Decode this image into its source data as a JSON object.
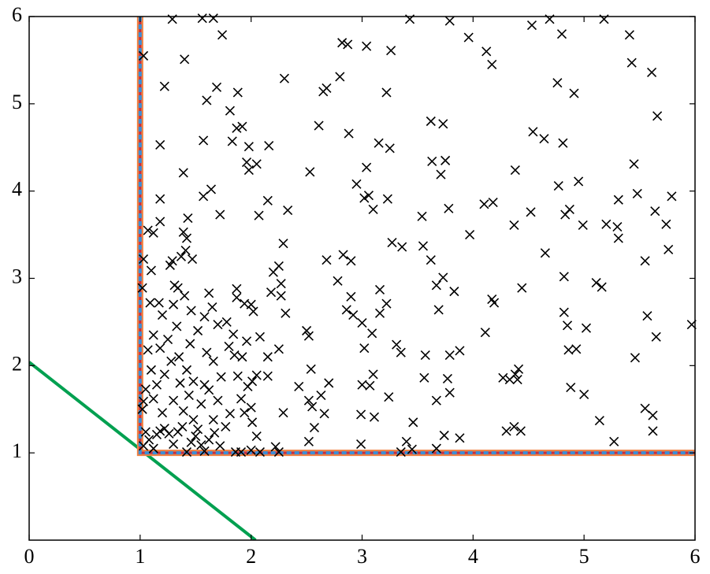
{
  "chart_data": {
    "type": "scatter",
    "xlim": [
      0,
      6
    ],
    "ylim": [
      0,
      6
    ],
    "xticks": [
      0,
      1,
      2,
      3,
      4,
      5,
      6
    ],
    "yticks": [
      1,
      2,
      3,
      4,
      5,
      6
    ],
    "series": [
      {
        "type": "line",
        "color": "#00a050",
        "linestyle": "solid",
        "x": [
          0,
          2.04
        ],
        "y": [
          2.04,
          0
        ]
      },
      {
        "type": "line",
        "color": "#f08040",
        "linestyle": "solid",
        "x": [
          1,
          1,
          6
        ],
        "y": [
          6,
          1,
          1
        ]
      },
      {
        "type": "line",
        "color": "#c03048",
        "linestyle": "solid",
        "x": [
          1,
          1,
          6
        ],
        "y": [
          6,
          1,
          1
        ]
      },
      {
        "type": "line",
        "color": "#3a8fd8",
        "linestyle": "dashed",
        "x": [
          1,
          1,
          6
        ],
        "y": [
          6,
          1,
          1
        ]
      },
      {
        "type": "scatter",
        "color": "#000000",
        "marker": "x",
        "x": [
          1.29,
          1.56,
          1.66,
          1.74,
          1.03,
          1.22,
          1.4,
          1.69,
          1.6,
          1.81,
          1.88,
          1.87,
          1.83,
          1.92,
          1.98,
          1.96,
          2.05,
          1.98,
          1.18,
          1.57,
          1.39,
          2.16,
          2.3,
          2.53,
          2.61,
          2.65,
          2.68,
          2.8,
          2.82,
          2.87,
          3.04,
          3.26,
          3.43,
          2.88,
          3.15,
          3.25,
          3.22,
          3.04,
          3.79,
          3.96,
          4.12,
          4.17,
          4.53,
          4.69,
          4.8,
          4.76,
          4.91,
          5.18,
          5.41,
          5.43,
          5.61,
          5.66,
          4.54,
          4.64,
          4.81,
          3.62,
          3.73,
          3.63,
          3.71,
          3.75,
          4.38,
          4.77,
          4.95,
          5.45,
          5.48,
          5.31,
          5.64,
          5.79,
          5.74,
          5.76,
          5.3,
          5.31,
          5.2,
          4.83,
          4.87,
          4.99,
          4.65,
          4.52,
          4.37,
          4.1,
          4.18,
          3.97,
          3.78,
          3.54,
          3.27,
          3.36,
          3.55,
          3.62,
          2.95,
          3.02,
          3.06,
          3.1,
          3.23,
          2.33,
          2.07,
          2.15,
          1.64,
          1.57,
          1.72,
          1.18,
          1.18,
          1.12,
          1.07,
          1.43,
          1.39,
          1.42,
          1.41,
          1.47,
          1.37,
          1.27,
          1.29,
          1.03,
          1.1,
          1.02,
          1.17,
          1.34,
          1.31,
          1.4,
          1.46,
          1.65,
          1.62,
          1.87,
          1.87,
          1.94,
          2.0,
          2.02,
          2.2,
          2.25,
          2.29,
          2.27,
          2.27,
          2.31,
          2.18,
          2.68,
          2.83,
          2.9,
          2.78,
          2.86,
          2.9,
          2.92,
          3.0,
          3.09,
          3.16,
          3.22,
          3.16,
          3.67,
          3.73,
          3.69,
          3.83,
          4.17,
          4.19,
          4.44,
          4.82,
          5.11,
          5.16,
          5.55,
          5.97,
          5.57,
          5.65,
          5.02,
          4.82,
          4.85,
          4.86,
          4.93,
          4.11,
          3.79,
          3.88,
          3.57,
          3.31,
          3.35,
          3.02,
          2.5,
          2.52,
          2.25,
          2.15,
          2.08,
          5.46,
          4.41,
          4.38,
          4.33,
          4.27,
          4.4,
          3.77,
          3.79,
          3.56,
          3.24,
          3.1,
          3.07,
          3.0,
          2.99,
          3.11,
          3.46,
          3.67,
          3.74,
          3.88,
          3.4,
          3.45,
          3.35,
          3.67,
          2.99,
          4.88,
          5.0,
          5.14,
          5.27,
          5.55,
          5.62,
          5.62,
          4.3,
          4.37,
          4.43,
          2.7,
          2.54,
          2.63,
          2.52,
          2.55,
          2.66,
          2.57,
          2.52,
          2.43,
          2.29,
          2.22,
          2.15,
          2.05,
          2.01,
          1.97,
          1.91,
          2.0,
          1.94,
          2.01,
          2.05,
          2.0,
          1.91,
          1.86,
          2.08,
          2.25,
          1.05,
          1.03,
          1.02,
          1.05,
          1.03,
          1.08,
          1.12,
          1.15,
          1.18,
          1.22,
          1.26,
          1.3,
          1.34,
          1.38,
          1.42,
          1.46,
          1.5,
          1.55,
          1.58,
          1.62,
          1.67,
          1.72,
          1.77,
          1.81,
          1.7,
          1.62,
          1.55,
          1.48,
          1.42,
          1.35,
          1.28,
          1.22,
          1.15,
          1.1,
          1.07,
          1.12,
          1.18,
          1.25,
          1.33,
          1.45,
          1.52,
          1.6,
          1.66,
          1.73,
          1.8,
          1.85,
          1.78,
          1.7,
          1.58,
          1.48,
          1.39,
          1.3,
          1.2,
          1.12,
          1.66,
          1.52,
          1.09,
          1.2,
          1.3,
          1.36,
          1.44,
          1.58,
          1.88,
          1.92,
          1.96,
          1.84
        ],
        "y": [
          5.97,
          5.98,
          5.98,
          5.79,
          5.55,
          5.2,
          5.51,
          5.19,
          5.04,
          4.92,
          5.13,
          4.72,
          4.57,
          4.74,
          4.51,
          4.33,
          4.31,
          4.24,
          4.53,
          4.58,
          4.21,
          4.52,
          5.29,
          4.22,
          4.75,
          5.14,
          5.18,
          5.31,
          5.7,
          5.68,
          5.66,
          5.61,
          5.97,
          4.66,
          4.55,
          4.49,
          5.13,
          4.27,
          5.95,
          5.76,
          5.6,
          5.45,
          5.9,
          5.97,
          5.8,
          5.24,
          5.12,
          5.97,
          5.79,
          5.47,
          5.36,
          4.86,
          4.68,
          4.6,
          4.55,
          4.8,
          4.77,
          4.34,
          4.19,
          4.35,
          4.24,
          4.06,
          4.11,
          4.31,
          3.97,
          3.9,
          3.77,
          3.94,
          3.62,
          3.33,
          3.59,
          3.46,
          3.62,
          3.73,
          3.79,
          3.61,
          3.29,
          3.76,
          3.61,
          3.85,
          3.87,
          3.5,
          3.8,
          3.71,
          3.41,
          3.36,
          3.37,
          3.21,
          4.08,
          3.92,
          3.95,
          3.79,
          3.91,
          3.78,
          3.72,
          3.89,
          4.02,
          3.94,
          3.73,
          3.91,
          3.65,
          3.52,
          3.55,
          3.69,
          3.53,
          3.46,
          3.32,
          3.22,
          3.25,
          3.15,
          3.2,
          3.22,
          3.09,
          2.89,
          2.72,
          2.89,
          2.92,
          2.8,
          2.63,
          2.67,
          2.83,
          2.88,
          2.78,
          2.71,
          2.7,
          2.62,
          3.07,
          3.14,
          3.4,
          2.94,
          2.8,
          2.6,
          2.84,
          3.21,
          3.27,
          3.2,
          2.97,
          2.64,
          2.79,
          2.58,
          2.49,
          2.37,
          2.87,
          2.71,
          2.6,
          2.92,
          3.01,
          2.64,
          2.85,
          2.76,
          2.72,
          2.89,
          3.02,
          2.95,
          2.9,
          3.2,
          2.47,
          2.57,
          2.33,
          2.43,
          2.61,
          2.46,
          2.18,
          2.19,
          2.38,
          2.12,
          2.17,
          2.12,
          2.24,
          2.15,
          2.2,
          2.4,
          2.34,
          2.19,
          2.1,
          2.33,
          2.09,
          1.96,
          1.9,
          1.84,
          1.86,
          1.84,
          1.85,
          1.69,
          1.86,
          1.64,
          1.9,
          1.77,
          1.78,
          1.44,
          1.41,
          1.35,
          1.6,
          1.2,
          1.17,
          1.13,
          1.04,
          1.01,
          1.05,
          1.1,
          1.75,
          1.67,
          1.37,
          1.13,
          1.51,
          1.43,
          1.25,
          1.25,
          1.3,
          1.25,
          1.8,
          1.96,
          1.66,
          1.6,
          1.53,
          1.45,
          1.29,
          1.13,
          1.76,
          1.46,
          1.07,
          1.88,
          1.89,
          1.82,
          1.76,
          1.62,
          1.52,
          1.46,
          1.35,
          1.19,
          1.03,
          1.01,
          1.01,
          1.01,
          1.01,
          1.73,
          1.59,
          1.5,
          1.24,
          1.08,
          1.15,
          1.05,
          1.21,
          1.25,
          1.28,
          1.22,
          1.1,
          1.24,
          1.3,
          1.01,
          1.12,
          1.19,
          1.09,
          1.02,
          1.15,
          1.23,
          1.08,
          1.3,
          1.45,
          1.6,
          1.72,
          1.56,
          1.82,
          1.95,
          2.1,
          2.05,
          1.9,
          1.78,
          1.95,
          2.18,
          2.35,
          2.2,
          2.3,
          2.45,
          2.25,
          2.4,
          2.15,
          2.05,
          1.87,
          2.22,
          2.12,
          2.5,
          2.47,
          2.56,
          1.38,
          1.48,
          1.6,
          1.46,
          1.62,
          1.38,
          1.27,
          2.72,
          2.58,
          2.7,
          1.8,
          1.66,
          1.78,
          1.88,
          2.1,
          2.28,
          2.36
        ]
      }
    ]
  }
}
